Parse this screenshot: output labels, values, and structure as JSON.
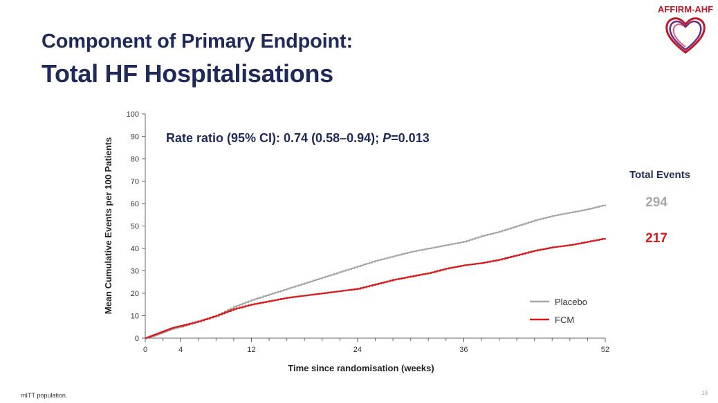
{
  "slide": {
    "title_line1": "Component of Primary Endpoint:",
    "title_line2": "Total HF Hospitalisations",
    "footnote": "mITT  population.",
    "page_number": "13"
  },
  "logo": {
    "text": "AFFIRM-AHF",
    "color_primary": "#c0182a",
    "color_secondary": "#6a2c7a"
  },
  "colors": {
    "title": "#1f2a5a",
    "placebo": "#a6a6a6",
    "fcm": "#d7191c",
    "axis": "#666666"
  },
  "chart_data": {
    "type": "line",
    "xlabel": "Time since randomisation (weeks)",
    "ylabel": "Mean Cumulative Events per 100 Patients",
    "xlim": [
      0,
      52
    ],
    "ylim": [
      0,
      100
    ],
    "x_ticks": [
      0,
      4,
      12,
      24,
      36,
      52
    ],
    "x_minor_ticks": [
      0,
      2,
      4,
      6,
      8,
      10,
      12,
      14,
      16,
      18,
      20,
      22,
      24,
      26,
      28,
      30,
      32,
      34,
      36,
      38,
      40,
      42,
      44,
      46,
      48,
      50,
      52
    ],
    "y_ticks": [
      0,
      10,
      20,
      30,
      40,
      50,
      60,
      70,
      80,
      90,
      100
    ],
    "annotation": {
      "prefix": "Rate ratio (95% CI): 0.74 (0.58–0.94); ",
      "p_label": "P",
      "p_value": "=0.013"
    },
    "legend": {
      "position": "bottom-right"
    },
    "series": [
      {
        "name": "Placebo",
        "color": "#a6a6a6",
        "points": [
          [
            0,
            0
          ],
          [
            1,
            1
          ],
          [
            2,
            2.5
          ],
          [
            3,
            4
          ],
          [
            4,
            5
          ],
          [
            6,
            7.5
          ],
          [
            8,
            10
          ],
          [
            10,
            14
          ],
          [
            12,
            17
          ],
          [
            14,
            19.5
          ],
          [
            16,
            22
          ],
          [
            18,
            24.5
          ],
          [
            20,
            27
          ],
          [
            22,
            29.5
          ],
          [
            24,
            32
          ],
          [
            26,
            34.5
          ],
          [
            28,
            36.5
          ],
          [
            30,
            38.5
          ],
          [
            32,
            40
          ],
          [
            34,
            41.5
          ],
          [
            36,
            43
          ],
          [
            38,
            45.5
          ],
          [
            40,
            47.5
          ],
          [
            42,
            50
          ],
          [
            44,
            52.5
          ],
          [
            46,
            54.5
          ],
          [
            48,
            56
          ],
          [
            50,
            57.5
          ],
          [
            52,
            59.5
          ]
        ]
      },
      {
        "name": "FCM",
        "color": "#d7191c",
        "points": [
          [
            0,
            0
          ],
          [
            1,
            1.5
          ],
          [
            2,
            3
          ],
          [
            3,
            4.5
          ],
          [
            4,
            5.5
          ],
          [
            6,
            7.5
          ],
          [
            8,
            10
          ],
          [
            10,
            13
          ],
          [
            12,
            15
          ],
          [
            14,
            16.5
          ],
          [
            16,
            18
          ],
          [
            18,
            19
          ],
          [
            20,
            20
          ],
          [
            22,
            21
          ],
          [
            24,
            22
          ],
          [
            26,
            24
          ],
          [
            28,
            26
          ],
          [
            30,
            27.5
          ],
          [
            32,
            29
          ],
          [
            34,
            31
          ],
          [
            36,
            32.5
          ],
          [
            38,
            33.5
          ],
          [
            40,
            35
          ],
          [
            42,
            37
          ],
          [
            44,
            39
          ],
          [
            46,
            40.5
          ],
          [
            48,
            41.5
          ],
          [
            50,
            43
          ],
          [
            52,
            44.5
          ]
        ]
      }
    ],
    "total_events": {
      "title": "Total Events",
      "placebo": "294",
      "fcm": "217"
    }
  }
}
